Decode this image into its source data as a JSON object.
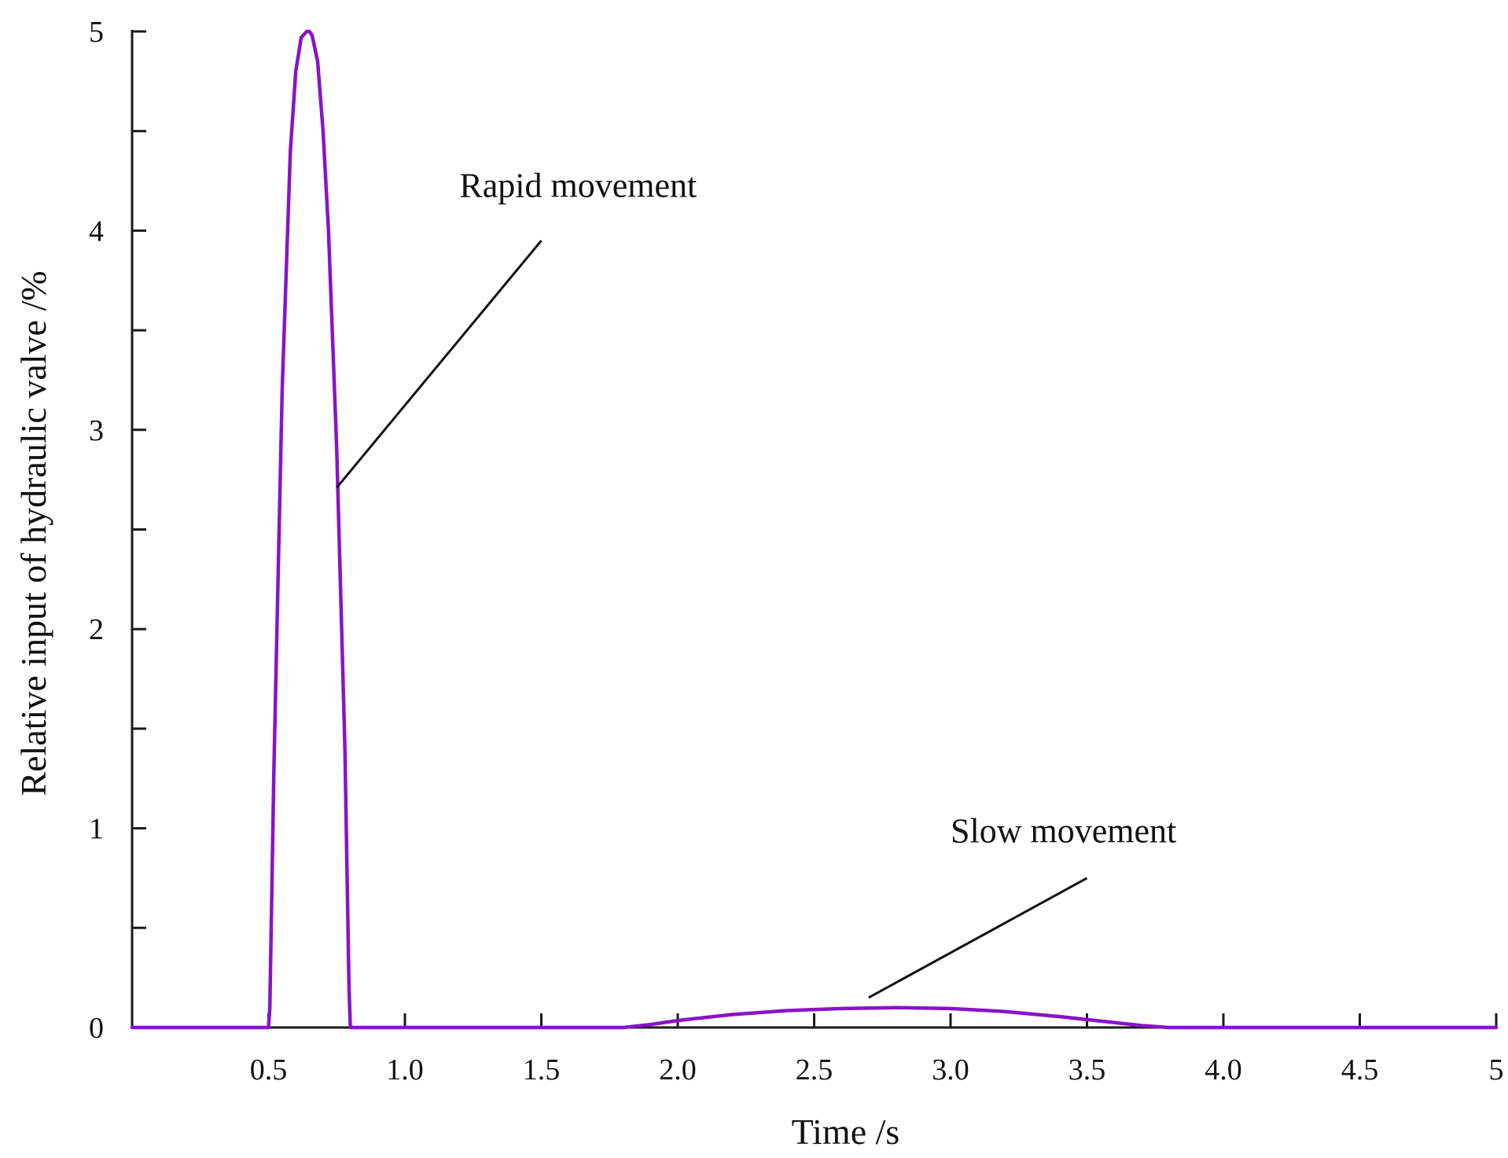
{
  "chart_data": {
    "type": "line",
    "title": "",
    "xlabel": "Time /s",
    "ylabel": "Relative input of hydraulic valve /%",
    "xlim": [
      0,
      5
    ],
    "ylim": [
      0,
      5
    ],
    "grid": false,
    "colors": {
      "series": "#8a12c8",
      "axis": "#1a1a1a",
      "leader": "#111111"
    },
    "x_ticks": [
      {
        "value": 0.5,
        "label": "0.5"
      },
      {
        "value": 1.0,
        "label": "1.0"
      },
      {
        "value": 1.5,
        "label": "1.5"
      },
      {
        "value": 2.0,
        "label": "2.0"
      },
      {
        "value": 2.5,
        "label": "2.5"
      },
      {
        "value": 3.0,
        "label": "3.0"
      },
      {
        "value": 3.5,
        "label": "3.5"
      },
      {
        "value": 4.0,
        "label": "4.0"
      },
      {
        "value": 4.5,
        "label": "4.5"
      },
      {
        "value": 5.0,
        "label": "5"
      }
    ],
    "y_ticks": [
      {
        "value": 0,
        "label": "0"
      },
      {
        "value": 0.5,
        "label": ""
      },
      {
        "value": 1,
        "label": "1"
      },
      {
        "value": 1.5,
        "label": ""
      },
      {
        "value": 2,
        "label": "2"
      },
      {
        "value": 2.5,
        "label": ""
      },
      {
        "value": 3,
        "label": "3"
      },
      {
        "value": 3.5,
        "label": ""
      },
      {
        "value": 4,
        "label": "4"
      },
      {
        "value": 4.5,
        "label": ""
      },
      {
        "value": 5,
        "label": "5"
      }
    ],
    "series": [
      {
        "x": [
          0,
          0.5,
          0.505,
          0.52,
          0.55,
          0.58,
          0.6,
          0.62,
          0.64,
          0.65,
          0.66,
          0.68,
          0.7,
          0.72,
          0.75,
          0.78,
          0.795,
          0.8,
          1.0,
          1.5,
          1.8,
          1.9,
          2.0,
          2.2,
          2.4,
          2.6,
          2.8,
          3.0,
          3.2,
          3.4,
          3.6,
          3.7,
          3.8,
          4.0,
          4.5,
          5.0
        ],
        "y": [
          0,
          0,
          0.1,
          1.3,
          3.2,
          4.4,
          4.8,
          4.97,
          5.0,
          5.0,
          4.98,
          4.85,
          4.5,
          4.0,
          2.9,
          1.4,
          0.2,
          0,
          0,
          0,
          0,
          0.015,
          0.035,
          0.065,
          0.085,
          0.095,
          0.1,
          0.095,
          0.08,
          0.055,
          0.025,
          0.01,
          0,
          0,
          0,
          0
        ]
      }
    ],
    "annotations": [
      {
        "text": "Rapid movement",
        "text_x": 1.2,
        "text_y": 4.17,
        "leader_start": [
          1.5,
          3.95
        ],
        "leader_end": [
          0.75,
          2.71
        ]
      },
      {
        "text": "Slow movement",
        "text_x": 3.0,
        "text_y": 0.93,
        "leader_start": [
          3.5,
          0.75
        ],
        "leader_end": [
          2.7,
          0.15
        ]
      }
    ]
  }
}
